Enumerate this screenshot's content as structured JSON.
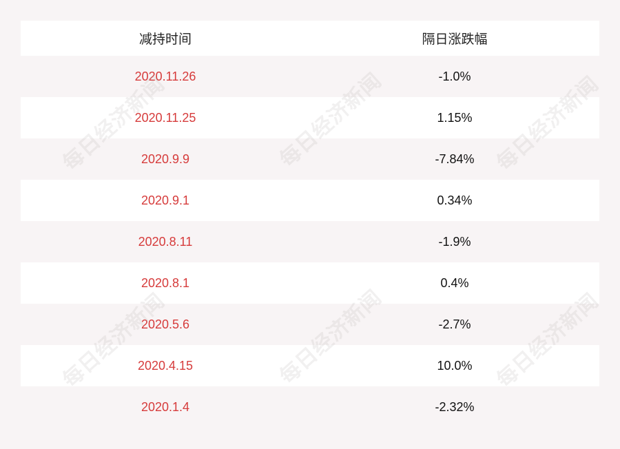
{
  "table": {
    "headers": {
      "date": "减持时间",
      "change": "隔日涨跌幅"
    },
    "rows": [
      {
        "date": "2020.11.26",
        "change": "-1.0%"
      },
      {
        "date": "2020.11.25",
        "change": "1.15%"
      },
      {
        "date": "2020.9.9",
        "change": "-7.84%"
      },
      {
        "date": "2020.9.1",
        "change": "0.34%"
      },
      {
        "date": "2020.8.11",
        "change": "-1.9%"
      },
      {
        "date": "2020.8.1",
        "change": "0.4%"
      },
      {
        "date": "2020.5.6",
        "change": "-2.7%"
      },
      {
        "date": "2020.4.15",
        "change": "10.0%"
      },
      {
        "date": "2020.1.4",
        "change": "-2.32%"
      }
    ]
  },
  "watermark": "每日经济新闻",
  "colors": {
    "date_text": "#d63b3b",
    "change_text": "#111111",
    "background": "#f8f4f5"
  }
}
